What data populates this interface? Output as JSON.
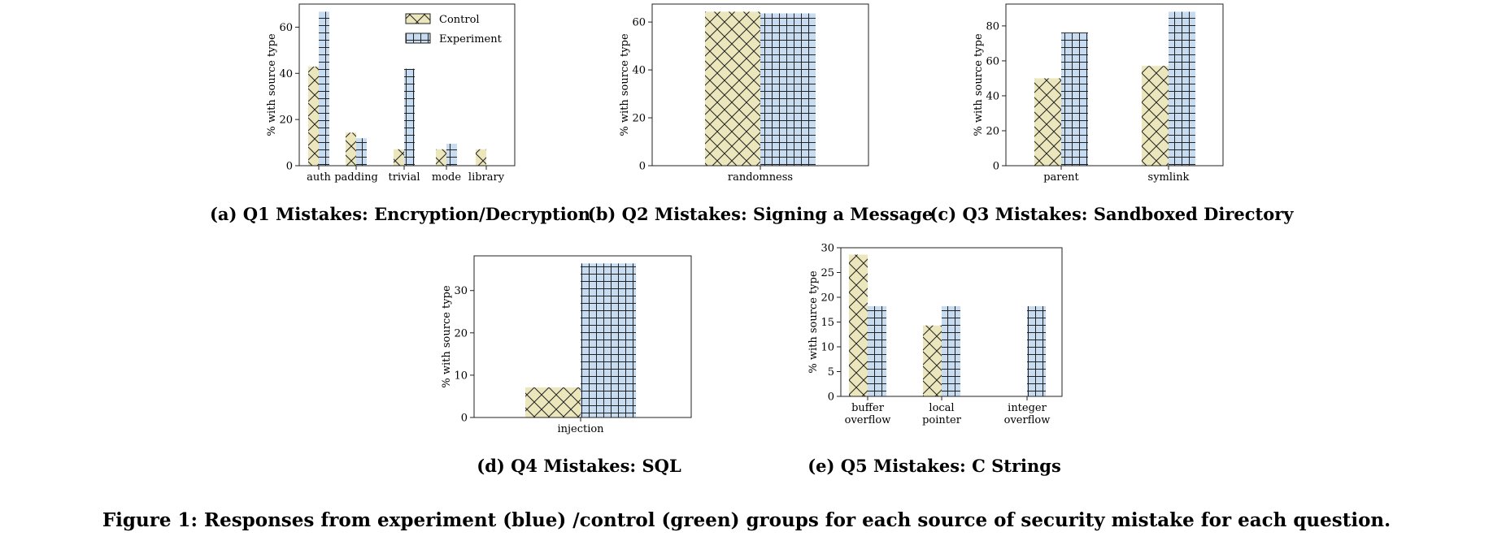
{
  "colors": {
    "control_fill": "#ece6bd",
    "experiment_fill": "#c7dbf1",
    "edge": "#222222"
  },
  "legend": {
    "control_label": "Control",
    "experiment_label": "Experiment"
  },
  "chart_data": [
    {
      "type": "bar",
      "title": "(a) Q1 Mistakes: Encryption/Decryption",
      "categories": [
        "auth",
        "padding",
        "trivial",
        "mode",
        "library"
      ],
      "series": [
        {
          "name": "Control",
          "values": [
            42.9,
            14.3,
            7.1,
            7.1,
            7.1
          ]
        },
        {
          "name": "Experiment",
          "values": [
            66.7,
            11.9,
            42.0,
            9.5,
            0
          ]
        }
      ],
      "ylabel": "% with source type",
      "ylim": [
        0,
        70
      ],
      "yticks": [
        "0",
        "20",
        "40",
        "60"
      ]
    },
    {
      "type": "bar",
      "title": "(b) Q2 Mistakes: Signing a Message",
      "categories": [
        "randomness"
      ],
      "series": [
        {
          "name": "Control",
          "values": [
            64.3
          ]
        },
        {
          "name": "Experiment",
          "values": [
            63.6
          ]
        }
      ],
      "ylabel": "% with source type",
      "ylim": [
        0,
        67.5
      ],
      "yticks": [
        "0",
        "20",
        "40",
        "60"
      ]
    },
    {
      "type": "bar",
      "title": "(c) Q3 Mistakes: Sandboxed Directory",
      "categories": [
        "parent",
        "symlink"
      ],
      "series": [
        {
          "name": "Control",
          "values": [
            50.0,
            57.1
          ]
        },
        {
          "name": "Experiment",
          "values": [
            76.2,
            88.1
          ]
        }
      ],
      "ylabel": "% with source type",
      "ylim": [
        0,
        92.5
      ],
      "yticks": [
        "0",
        "20",
        "40",
        "60",
        "80"
      ]
    },
    {
      "type": "bar",
      "title": "(d) Q4 Mistakes: SQL",
      "categories": [
        "injection"
      ],
      "series": [
        {
          "name": "Control",
          "values": [
            7.1
          ]
        },
        {
          "name": "Experiment",
          "values": [
            36.4
          ]
        }
      ],
      "ylabel": "% with source type",
      "ylim": [
        0,
        38.2
      ],
      "yticks": [
        "0",
        "10",
        "20",
        "30"
      ]
    },
    {
      "type": "bar",
      "title": "(e) Q5 Mistakes: C Strings",
      "categories": [
        "buffer overflow",
        "local pointer",
        "integer overflow"
      ],
      "category_lines": [
        [
          "buffer",
          "overflow"
        ],
        [
          "local",
          "pointer"
        ],
        [
          "integer",
          "overflow"
        ]
      ],
      "series": [
        {
          "name": "Control",
          "values": [
            28.6,
            14.3,
            0
          ]
        },
        {
          "name": "Experiment",
          "values": [
            18.2,
            18.2,
            18.2
          ]
        }
      ],
      "ylabel": "% with source type",
      "ylim": [
        0,
        30
      ],
      "yticks": [
        "0",
        "5",
        "10",
        "15",
        "20",
        "25",
        "30"
      ]
    }
  ],
  "figure_caption": "Figure 1: Responses from experiment (blue) /control (green) groups for each source of security mistake for each question."
}
